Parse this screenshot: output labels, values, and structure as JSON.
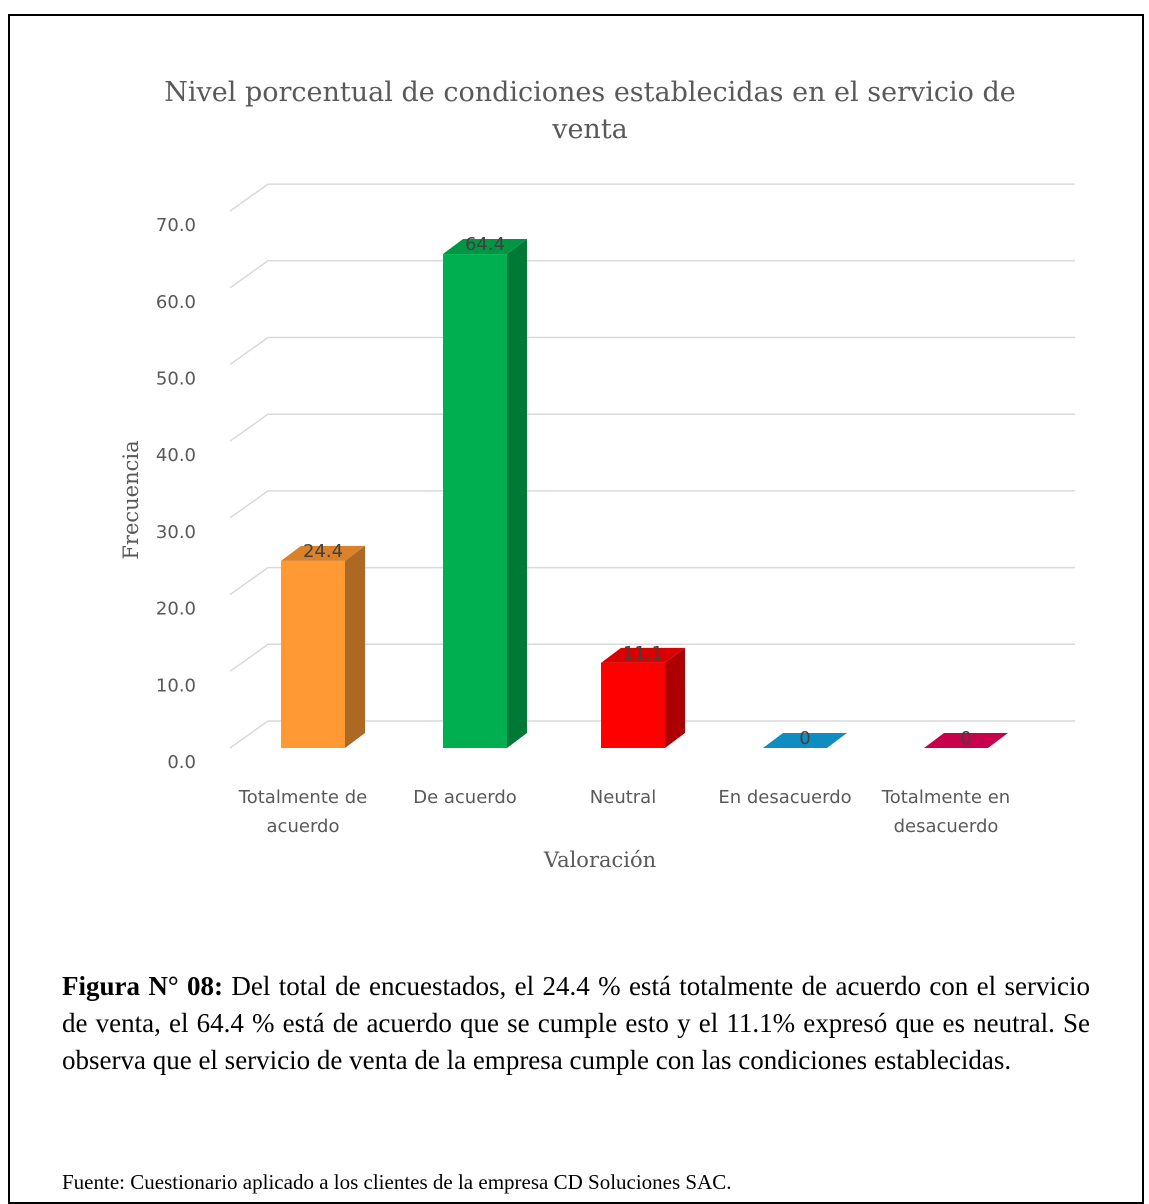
{
  "chart_data": {
    "type": "bar",
    "title": "Nivel porcentual de condiciones establecidas en el servicio de venta",
    "xlabel": "Valoración",
    "ylabel": "Frecuencia",
    "categories": [
      "Totalmente de acuerdo",
      "De acuerdo",
      "Neutral",
      "En desacuerdo",
      "Totalmente en desacuerdo"
    ],
    "category_lines": [
      [
        "Totalmente de",
        "acuerdo"
      ],
      [
        "De acuerdo"
      ],
      [
        "Neutral"
      ],
      [
        "En desacuerdo"
      ],
      [
        "Totalmente en",
        "desacuerdo"
      ]
    ],
    "values": [
      24.4,
      64.4,
      11.1,
      0,
      0
    ],
    "value_labels": [
      "24.4",
      "64.4",
      "11.1",
      "0",
      "0"
    ],
    "colors": [
      "#FF9933",
      "#00B050",
      "#FF0000",
      "#0F8DC1",
      "#C9004C"
    ],
    "ylim": [
      0,
      70
    ],
    "yticks": [
      "0.0",
      "10.0",
      "20.0",
      "30.0",
      "40.0",
      "50.0",
      "60.0",
      "70.0"
    ],
    "grid": true,
    "style": "3d-column"
  },
  "caption": {
    "label": "Figura N° 08:",
    "text": " Del total de encuestados, el 24.4 % está totalmente de acuerdo con el servicio de venta, el 64.4 % está de acuerdo que se cumple esto y el 11.1% expresó que es neutral. Se observa que el servicio de venta de la empresa cumple con las condiciones establecidas."
  },
  "source": "Fuente: Cuestionario aplicado a los clientes de la empresa CD Soluciones SAC."
}
